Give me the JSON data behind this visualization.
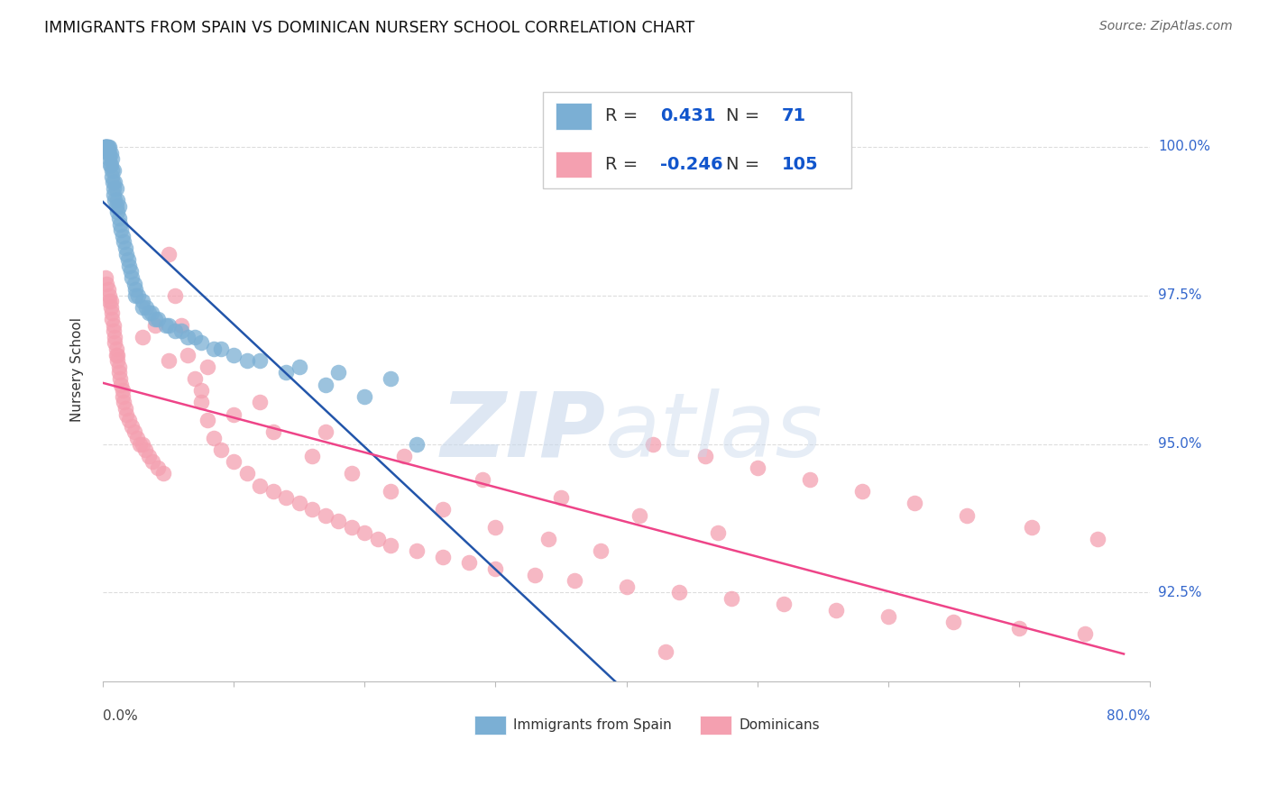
{
  "title": "IMMIGRANTS FROM SPAIN VS DOMINICAN NURSERY SCHOOL CORRELATION CHART",
  "source": "Source: ZipAtlas.com",
  "ylabel": "Nursery School",
  "blue_R": 0.431,
  "blue_N": 71,
  "pink_R": -0.246,
  "pink_N": 105,
  "blue_color": "#7BAFD4",
  "pink_color": "#F4A0B0",
  "blue_line_color": "#2255AA",
  "pink_line_color": "#EE4488",
  "watermark_zip_color": "#C8D8EC",
  "watermark_atlas_color": "#C8D8EC",
  "background_color": "#FFFFFF",
  "title_fontsize": 12.5,
  "source_fontsize": 10,
  "legend_fontsize": 14,
  "xlim": [
    0.0,
    80.0
  ],
  "ylim": [
    91.0,
    101.5
  ],
  "ytick_vals": [
    92.5,
    95.0,
    97.5,
    100.0
  ],
  "ytick_labels": [
    "92.5%",
    "95.0%",
    "97.5%",
    "100.0%"
  ],
  "blue_x": [
    0.1,
    0.15,
    0.2,
    0.2,
    0.25,
    0.3,
    0.3,
    0.35,
    0.4,
    0.4,
    0.45,
    0.5,
    0.5,
    0.55,
    0.6,
    0.6,
    0.65,
    0.7,
    0.7,
    0.75,
    0.8,
    0.8,
    0.85,
    0.9,
    0.9,
    1.0,
    1.0,
    1.1,
    1.1,
    1.2,
    1.2,
    1.3,
    1.4,
    1.5,
    1.6,
    1.7,
    1.8,
    1.9,
    2.0,
    2.1,
    2.2,
    2.4,
    2.5,
    2.7,
    3.0,
    3.3,
    3.7,
    4.2,
    4.8,
    5.5,
    6.5,
    7.5,
    8.5,
    10.0,
    12.0,
    15.0,
    18.0,
    22.0,
    2.5,
    3.0,
    3.5,
    4.0,
    5.0,
    6.0,
    7.0,
    9.0,
    11.0,
    14.0,
    17.0,
    20.0,
    24.0
  ],
  "blue_y": [
    100.0,
    100.0,
    100.0,
    100.0,
    100.0,
    100.0,
    100.0,
    100.0,
    100.0,
    99.9,
    99.9,
    99.8,
    100.0,
    99.7,
    99.7,
    99.9,
    99.6,
    99.5,
    99.8,
    99.4,
    99.3,
    99.6,
    99.2,
    99.1,
    99.4,
    99.0,
    99.3,
    98.9,
    99.1,
    98.8,
    99.0,
    98.7,
    98.6,
    98.5,
    98.4,
    98.3,
    98.2,
    98.1,
    98.0,
    97.9,
    97.8,
    97.7,
    97.6,
    97.5,
    97.4,
    97.3,
    97.2,
    97.1,
    97.0,
    96.9,
    96.8,
    96.7,
    96.6,
    96.5,
    96.4,
    96.3,
    96.2,
    96.1,
    97.5,
    97.3,
    97.2,
    97.1,
    97.0,
    96.9,
    96.8,
    96.6,
    96.4,
    96.2,
    96.0,
    95.8,
    95.0
  ],
  "pink_x": [
    0.2,
    0.3,
    0.4,
    0.5,
    0.5,
    0.6,
    0.6,
    0.7,
    0.7,
    0.8,
    0.8,
    0.9,
    0.9,
    1.0,
    1.0,
    1.1,
    1.1,
    1.2,
    1.2,
    1.3,
    1.4,
    1.5,
    1.5,
    1.6,
    1.7,
    1.8,
    2.0,
    2.2,
    2.4,
    2.6,
    2.8,
    3.0,
    3.2,
    3.5,
    3.8,
    4.2,
    4.6,
    5.0,
    5.5,
    6.0,
    6.5,
    7.0,
    7.5,
    8.0,
    8.5,
    9.0,
    10.0,
    11.0,
    12.0,
    13.0,
    14.0,
    15.0,
    16.0,
    17.0,
    18.0,
    19.0,
    20.0,
    21.0,
    22.0,
    24.0,
    26.0,
    28.0,
    30.0,
    33.0,
    36.0,
    40.0,
    44.0,
    48.0,
    52.0,
    56.0,
    60.0,
    65.0,
    70.0,
    75.0,
    3.0,
    5.0,
    7.5,
    10.0,
    13.0,
    16.0,
    19.0,
    22.0,
    26.0,
    30.0,
    34.0,
    38.0,
    42.0,
    46.0,
    50.0,
    54.0,
    58.0,
    62.0,
    66.0,
    71.0,
    76.0,
    4.0,
    8.0,
    12.0,
    17.0,
    23.0,
    29.0,
    35.0,
    41.0,
    47.0,
    43.0
  ],
  "pink_y": [
    97.8,
    97.7,
    97.6,
    97.5,
    97.4,
    97.4,
    97.3,
    97.2,
    97.1,
    97.0,
    96.9,
    96.8,
    96.7,
    96.6,
    96.5,
    96.5,
    96.4,
    96.3,
    96.2,
    96.1,
    96.0,
    95.9,
    95.8,
    95.7,
    95.6,
    95.5,
    95.4,
    95.3,
    95.2,
    95.1,
    95.0,
    95.0,
    94.9,
    94.8,
    94.7,
    94.6,
    94.5,
    98.2,
    97.5,
    97.0,
    96.5,
    96.1,
    95.7,
    95.4,
    95.1,
    94.9,
    94.7,
    94.5,
    94.3,
    94.2,
    94.1,
    94.0,
    93.9,
    93.8,
    93.7,
    93.6,
    93.5,
    93.4,
    93.3,
    93.2,
    93.1,
    93.0,
    92.9,
    92.8,
    92.7,
    92.6,
    92.5,
    92.4,
    92.3,
    92.2,
    92.1,
    92.0,
    91.9,
    91.8,
    96.8,
    96.4,
    95.9,
    95.5,
    95.2,
    94.8,
    94.5,
    94.2,
    93.9,
    93.6,
    93.4,
    93.2,
    95.0,
    94.8,
    94.6,
    94.4,
    94.2,
    94.0,
    93.8,
    93.6,
    93.4,
    97.0,
    96.3,
    95.7,
    95.2,
    94.8,
    94.4,
    94.1,
    93.8,
    93.5,
    91.5
  ]
}
